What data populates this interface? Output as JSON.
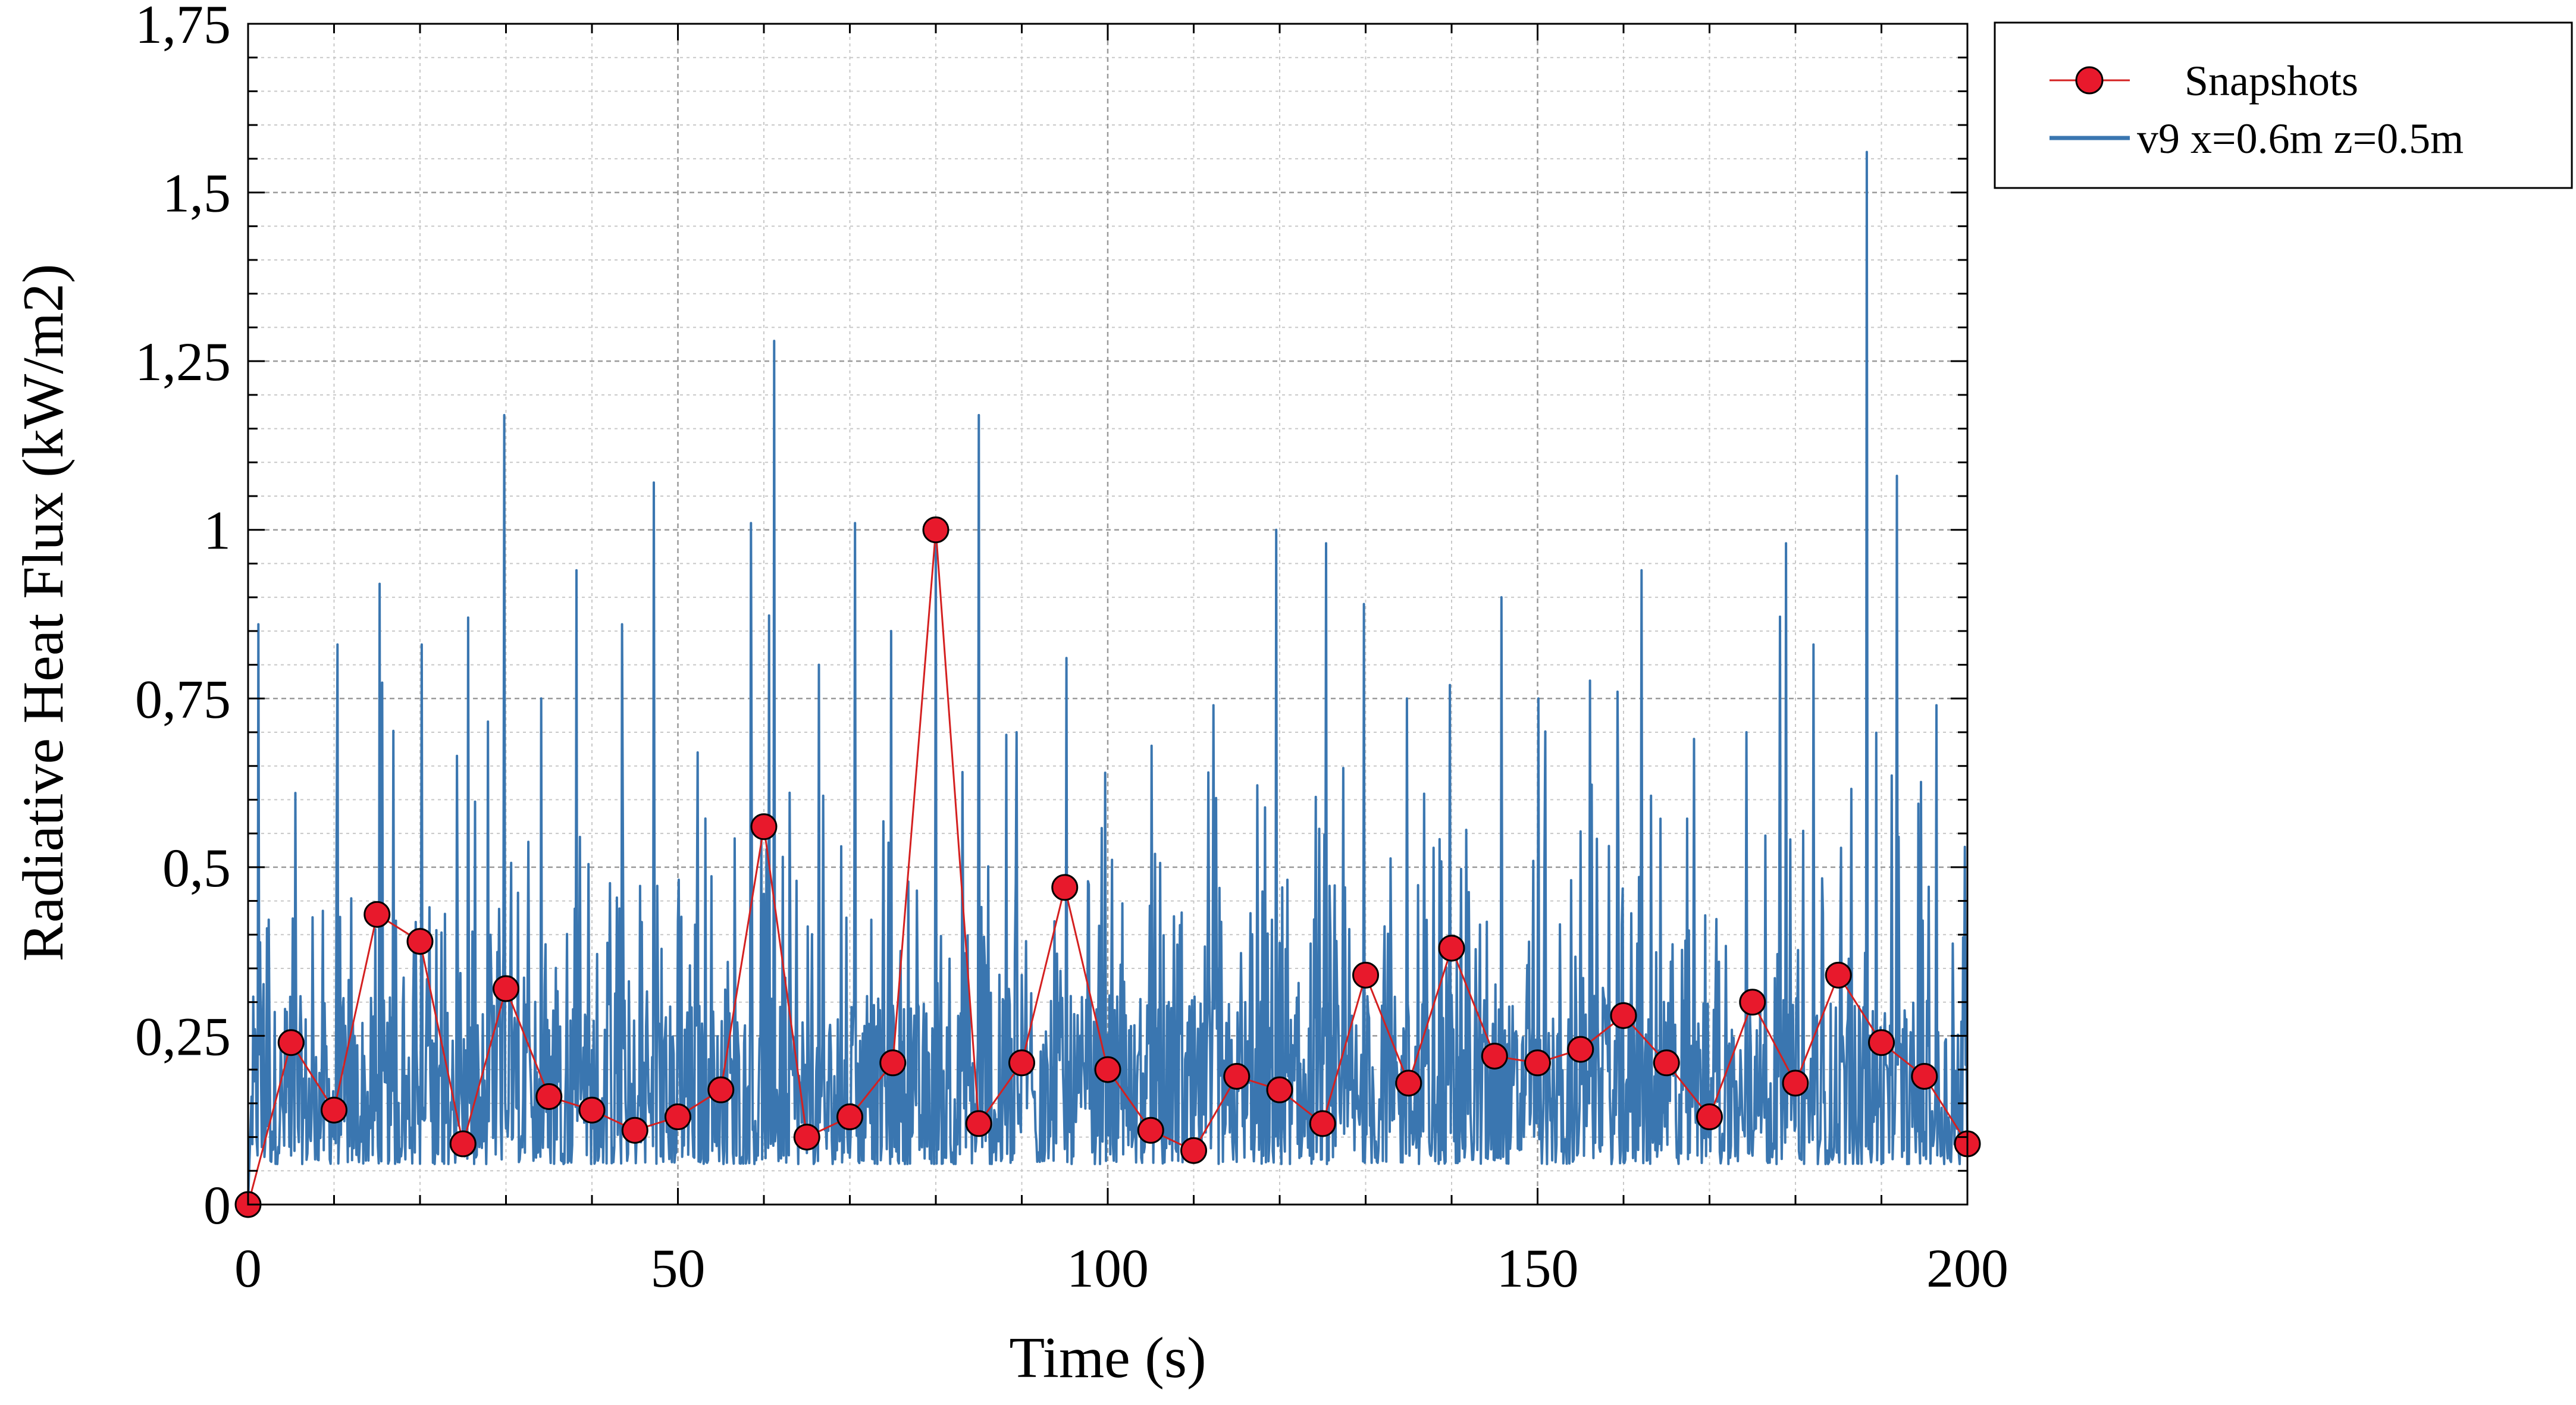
{
  "chart_data": {
    "type": "line",
    "xlabel": "Time (s)",
    "ylabel": "Radiative Heat Flux (kW/m2)",
    "xlim": [
      0,
      200
    ],
    "ylim": [
      0,
      1.75
    ],
    "xticks": [
      0,
      50,
      100,
      150,
      200
    ],
    "xtick_labels": [
      "0",
      "50",
      "100",
      "150",
      "200"
    ],
    "yticks": [
      0,
      0.25,
      0.5,
      0.75,
      1,
      1.25,
      1.5,
      1.75
    ],
    "ytick_labels": [
      "0",
      "0,25",
      "0,5",
      "0,75",
      "1",
      "1,25",
      "1,5",
      "1,75"
    ],
    "grid": true,
    "legend_position": "outside-top-right",
    "series": [
      {
        "name": "Snapshots",
        "style": "line-with-markers",
        "color": "#d42020",
        "marker_color": "#e8192c",
        "x": [
          0,
          5,
          10,
          15,
          20,
          25,
          30,
          35,
          40,
          45,
          50,
          55,
          60,
          65,
          70,
          75,
          80,
          85,
          90,
          95,
          100,
          105,
          110,
          115,
          120,
          125,
          130,
          135,
          140,
          145,
          150,
          155,
          160,
          165,
          170,
          175,
          180,
          185,
          190,
          195,
          200
        ],
        "y": [
          0.0,
          0.24,
          0.14,
          0.43,
          0.39,
          0.09,
          0.32,
          0.16,
          0.14,
          0.11,
          0.13,
          0.17,
          0.56,
          0.1,
          0.13,
          0.21,
          1.0,
          0.12,
          0.21,
          0.47,
          0.2,
          0.11,
          0.08,
          0.19,
          0.17,
          0.12,
          0.34,
          0.18,
          0.38,
          0.22,
          0.21,
          0.23,
          0.28,
          0.21,
          0.13,
          0.3,
          0.18,
          0.34,
          0.24,
          0.19,
          0.09
        ]
      },
      {
        "name": "v9 x=0.6m z=0.5m",
        "style": "line",
        "color": "#3a76b0",
        "sample_step": 0.1,
        "baseline": 0.2,
        "typical_range": [
          0.06,
          0.55
        ],
        "peaks": [
          {
            "x": 1.2,
            "y": 0.86
          },
          {
            "x": 5.5,
            "y": 0.61
          },
          {
            "x": 10.4,
            "y": 0.83
          },
          {
            "x": 15.3,
            "y": 0.92
          },
          {
            "x": 20.2,
            "y": 0.83
          },
          {
            "x": 25.6,
            "y": 0.87
          },
          {
            "x": 29.8,
            "y": 1.17
          },
          {
            "x": 34.1,
            "y": 0.75
          },
          {
            "x": 38.2,
            "y": 0.94
          },
          {
            "x": 43.5,
            "y": 0.86
          },
          {
            "x": 47.2,
            "y": 1.07
          },
          {
            "x": 52.3,
            "y": 0.67
          },
          {
            "x": 58.5,
            "y": 1.01
          },
          {
            "x": 61.2,
            "y": 1.28
          },
          {
            "x": 66.4,
            "y": 0.8
          },
          {
            "x": 70.6,
            "y": 1.01
          },
          {
            "x": 74.8,
            "y": 0.85
          },
          {
            "x": 80.0,
            "y": 1.01
          },
          {
            "x": 85.0,
            "y": 1.17
          },
          {
            "x": 89.4,
            "y": 0.7
          },
          {
            "x": 95.2,
            "y": 0.81
          },
          {
            "x": 99.7,
            "y": 0.64
          },
          {
            "x": 105.1,
            "y": 0.68
          },
          {
            "x": 112.3,
            "y": 0.74
          },
          {
            "x": 119.6,
            "y": 1.0
          },
          {
            "x": 125.4,
            "y": 0.98
          },
          {
            "x": 129.8,
            "y": 0.89
          },
          {
            "x": 134.8,
            "y": 0.75
          },
          {
            "x": 139.8,
            "y": 0.77
          },
          {
            "x": 145.8,
            "y": 0.9
          },
          {
            "x": 150.1,
            "y": 0.75
          },
          {
            "x": 159.3,
            "y": 0.76
          },
          {
            "x": 162.1,
            "y": 0.94
          },
          {
            "x": 168.2,
            "y": 0.69
          },
          {
            "x": 174.3,
            "y": 0.7
          },
          {
            "x": 178.9,
            "y": 0.98
          },
          {
            "x": 182.1,
            "y": 0.83
          },
          {
            "x": 188.3,
            "y": 1.56
          },
          {
            "x": 191.8,
            "y": 1.08
          },
          {
            "x": 196.4,
            "y": 0.74
          },
          {
            "x": 199.7,
            "y": 0.53
          }
        ]
      }
    ]
  }
}
